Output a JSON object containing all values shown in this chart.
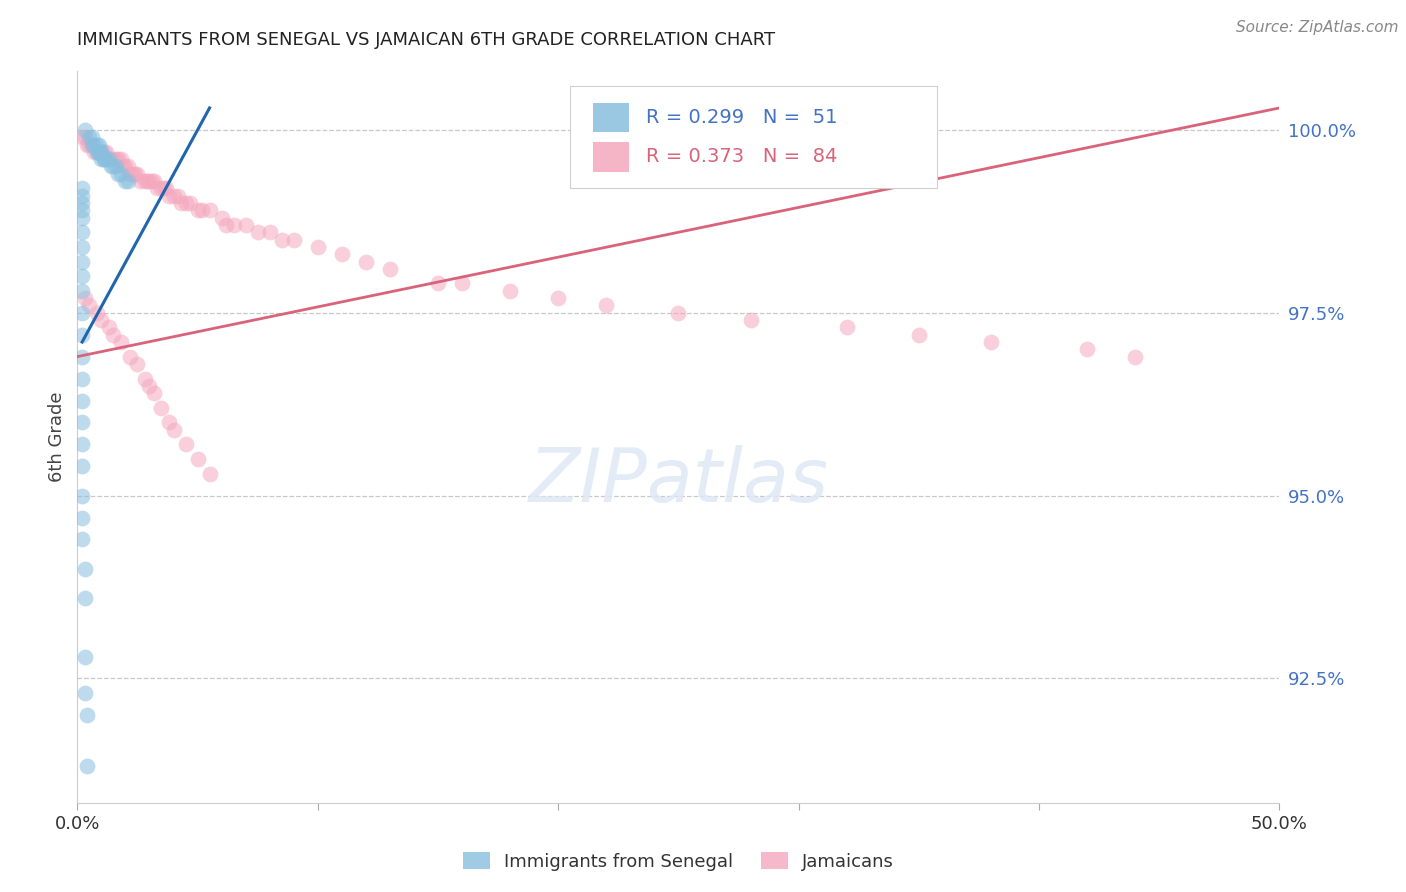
{
  "title": "IMMIGRANTS FROM SENEGAL VS JAMAICAN 6TH GRADE CORRELATION CHART",
  "source": "Source: ZipAtlas.com",
  "ylabel": "6th Grade",
  "ytick_labels": [
    "100.0%",
    "97.5%",
    "95.0%",
    "92.5%"
  ],
  "ytick_values": [
    1.0,
    0.975,
    0.95,
    0.925
  ],
  "xmin": 0.0,
  "xmax": 0.5,
  "ymin": 0.908,
  "ymax": 1.008,
  "blue_color": "#89bfdf",
  "pink_color": "#f4a8be",
  "blue_line_color": "#2166ac",
  "pink_line_color": "#d9637a",
  "scatter_alpha": 0.55,
  "blue_scatter_x": [
    0.003,
    0.005,
    0.006,
    0.006,
    0.007,
    0.008,
    0.008,
    0.009,
    0.009,
    0.009,
    0.01,
    0.01,
    0.01,
    0.011,
    0.011,
    0.012,
    0.013,
    0.014,
    0.015,
    0.016,
    0.017,
    0.018,
    0.02,
    0.021,
    0.002,
    0.002,
    0.002,
    0.002,
    0.002,
    0.002,
    0.002,
    0.002,
    0.002,
    0.002,
    0.002,
    0.002,
    0.002,
    0.002,
    0.002,
    0.002,
    0.002,
    0.002,
    0.002,
    0.002,
    0.002,
    0.003,
    0.003,
    0.003,
    0.003,
    0.004,
    0.004
  ],
  "blue_scatter_y": [
    1.0,
    0.999,
    0.999,
    0.998,
    0.998,
    0.998,
    0.997,
    0.998,
    0.997,
    0.997,
    0.997,
    0.997,
    0.996,
    0.996,
    0.996,
    0.996,
    0.996,
    0.995,
    0.995,
    0.995,
    0.994,
    0.994,
    0.993,
    0.993,
    0.992,
    0.991,
    0.99,
    0.989,
    0.988,
    0.986,
    0.984,
    0.982,
    0.98,
    0.978,
    0.975,
    0.972,
    0.969,
    0.966,
    0.963,
    0.96,
    0.957,
    0.954,
    0.95,
    0.947,
    0.944,
    0.94,
    0.936,
    0.928,
    0.923,
    0.92,
    0.913
  ],
  "pink_scatter_x": [
    0.002,
    0.003,
    0.004,
    0.005,
    0.006,
    0.007,
    0.008,
    0.009,
    0.01,
    0.011,
    0.012,
    0.013,
    0.015,
    0.016,
    0.017,
    0.018,
    0.019,
    0.02,
    0.021,
    0.022,
    0.023,
    0.024,
    0.025,
    0.026,
    0.028,
    0.029,
    0.03,
    0.031,
    0.032,
    0.033,
    0.035,
    0.036,
    0.037,
    0.038,
    0.04,
    0.042,
    0.043,
    0.045,
    0.047,
    0.05,
    0.052,
    0.055,
    0.06,
    0.062,
    0.065,
    0.07,
    0.075,
    0.08,
    0.085,
    0.09,
    0.1,
    0.11,
    0.12,
    0.13,
    0.15,
    0.16,
    0.18,
    0.2,
    0.22,
    0.25,
    0.28,
    0.32,
    0.35,
    0.38,
    0.42,
    0.44,
    0.003,
    0.005,
    0.008,
    0.01,
    0.013,
    0.015,
    0.018,
    0.022,
    0.025,
    0.028,
    0.03,
    0.032,
    0.035,
    0.038,
    0.04,
    0.045,
    0.05,
    0.055
  ],
  "pink_scatter_y": [
    0.999,
    0.999,
    0.998,
    0.998,
    0.998,
    0.997,
    0.997,
    0.997,
    0.997,
    0.997,
    0.997,
    0.996,
    0.996,
    0.996,
    0.996,
    0.996,
    0.995,
    0.995,
    0.995,
    0.994,
    0.994,
    0.994,
    0.994,
    0.993,
    0.993,
    0.993,
    0.993,
    0.993,
    0.993,
    0.992,
    0.992,
    0.992,
    0.992,
    0.991,
    0.991,
    0.991,
    0.99,
    0.99,
    0.99,
    0.989,
    0.989,
    0.989,
    0.988,
    0.987,
    0.987,
    0.987,
    0.986,
    0.986,
    0.985,
    0.985,
    0.984,
    0.983,
    0.982,
    0.981,
    0.979,
    0.979,
    0.978,
    0.977,
    0.976,
    0.975,
    0.974,
    0.973,
    0.972,
    0.971,
    0.97,
    0.969,
    0.977,
    0.976,
    0.975,
    0.974,
    0.973,
    0.972,
    0.971,
    0.969,
    0.968,
    0.966,
    0.965,
    0.964,
    0.962,
    0.96,
    0.959,
    0.957,
    0.955,
    0.953
  ],
  "blue_trend_x": [
    0.002,
    0.055
  ],
  "blue_trend_y": [
    0.971,
    1.003
  ],
  "pink_trend_x": [
    0.0,
    0.5
  ],
  "pink_trend_y": [
    0.969,
    1.003
  ]
}
